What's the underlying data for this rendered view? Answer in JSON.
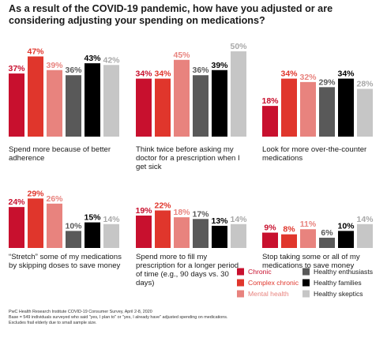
{
  "title": "As a result of the COVID-19 pandemic, how have you adjusted or are considering adjusting your spending on medications?",
  "source": "PwC Health Research Institute COVID-19 Consumer Survey, April 2-8, 2020",
  "base_note": "Base = 549 individuals surveyed who said \"yes, I plan to\" or \"yes, I already have\" adjusted spending on medications.",
  "exclusion_note": "Excludes frail elderly due to small sample size.",
  "colors": {
    "Chronic": "#c8102e",
    "Complex chronic": "#e0362c",
    "Mental health": "#e8837e",
    "Healthy enthusiasts": "#595959",
    "Healthy families": "#000000",
    "Healthy skeptics": "#c6c6c6"
  },
  "chart_data": [
    {
      "type": "bar",
      "caption": "Spend more because of better adherence",
      "categories": [
        "Chronic",
        "Complex chronic",
        "Mental health",
        "Healthy enthusiasts",
        "Healthy families",
        "Healthy skeptics"
      ],
      "values": [
        37,
        47,
        39,
        36,
        43,
        42
      ],
      "ylim": [
        0,
        50
      ]
    },
    {
      "type": "bar",
      "caption": "Think twice before asking my doctor for a prescription when I get sick",
      "categories": [
        "Chronic",
        "Complex chronic",
        "Mental health",
        "Healthy enthusiasts",
        "Healthy families",
        "Healthy skeptics"
      ],
      "values": [
        34,
        34,
        45,
        36,
        39,
        50
      ],
      "ylim": [
        0,
        50
      ]
    },
    {
      "type": "bar",
      "caption": "Look for more over-the-counter medications",
      "categories": [
        "Chronic",
        "Complex chronic",
        "Mental health",
        "Healthy enthusiasts",
        "Healthy families",
        "Healthy skeptics"
      ],
      "values": [
        18,
        34,
        32,
        29,
        34,
        28
      ],
      "ylim": [
        0,
        50
      ]
    },
    {
      "type": "bar",
      "caption": "“Stretch” some of my medications by skipping doses to save money",
      "categories": [
        "Chronic",
        "Complex chronic",
        "Mental health",
        "Healthy enthusiasts",
        "Healthy families",
        "Healthy skeptics"
      ],
      "values": [
        24,
        29,
        26,
        10,
        15,
        14
      ],
      "ylim": [
        0,
        50
      ]
    },
    {
      "type": "bar",
      "caption": "Spend more to fill my prescription for a longer period of time (e.g., 90 days vs. 30 days)",
      "categories": [
        "Chronic",
        "Complex chronic",
        "Mental health",
        "Healthy enthusiasts",
        "Healthy families",
        "Healthy skeptics"
      ],
      "values": [
        19,
        22,
        18,
        17,
        13,
        14
      ],
      "ylim": [
        0,
        50
      ]
    },
    {
      "type": "bar",
      "caption": "Stop taking some or all of my medications to save money",
      "categories": [
        "Chronic",
        "Complex chronic",
        "Mental health",
        "Healthy enthusiasts",
        "Healthy families",
        "Healthy skeptics"
      ],
      "values": [
        9,
        8,
        11,
        6,
        10,
        14
      ],
      "ylim": [
        0,
        50
      ]
    }
  ],
  "legend": [
    "Chronic",
    "Complex chronic",
    "Mental health",
    "Healthy enthusiasts",
    "Healthy families",
    "Healthy skeptics"
  ]
}
